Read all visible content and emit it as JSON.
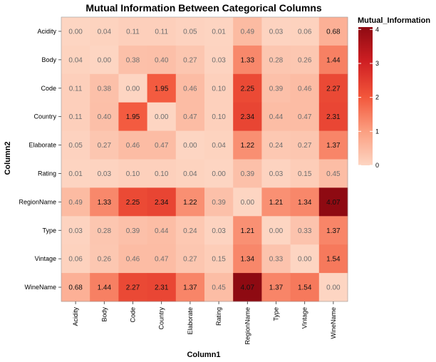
{
  "chart_data": {
    "type": "heatmap",
    "title": "Mutual Information Between Categorical Columns",
    "xlabel": "Column1",
    "ylabel": "Column2",
    "x_categories": [
      "Acidity",
      "Body",
      "Code",
      "Country",
      "Elaborate",
      "Rating",
      "RegionName",
      "Type",
      "Vintage",
      "WineName"
    ],
    "y_categories": [
      "Acidity",
      "Body",
      "Code",
      "Country",
      "Elaborate",
      "Rating",
      "RegionName",
      "Type",
      "Vintage",
      "WineName"
    ],
    "values": [
      [
        0.0,
        0.04,
        0.11,
        0.11,
        0.05,
        0.01,
        0.49,
        0.03,
        0.06,
        0.68
      ],
      [
        0.04,
        0.0,
        0.38,
        0.4,
        0.27,
        0.03,
        1.33,
        0.28,
        0.26,
        1.44
      ],
      [
        0.11,
        0.38,
        0.0,
        1.95,
        0.46,
        0.1,
        2.25,
        0.39,
        0.46,
        2.27
      ],
      [
        0.11,
        0.4,
        1.95,
        0.0,
        0.47,
        0.1,
        2.34,
        0.44,
        0.47,
        2.31
      ],
      [
        0.05,
        0.27,
        0.46,
        0.47,
        0.0,
        0.04,
        1.22,
        0.24,
        0.27,
        1.37
      ],
      [
        0.01,
        0.03,
        0.1,
        0.1,
        0.04,
        0.0,
        0.39,
        0.03,
        0.15,
        0.45
      ],
      [
        0.49,
        1.33,
        2.25,
        2.34,
        1.22,
        0.39,
        0.0,
        1.21,
        1.34,
        4.07
      ],
      [
        0.03,
        0.28,
        0.39,
        0.44,
        0.24,
        0.03,
        1.21,
        0.0,
        0.33,
        1.37
      ],
      [
        0.06,
        0.26,
        0.46,
        0.47,
        0.27,
        0.15,
        1.34,
        0.33,
        0.0,
        1.54
      ],
      [
        0.68,
        1.44,
        2.27,
        2.31,
        1.37,
        0.45,
        4.07,
        1.37,
        1.54,
        0.0
      ]
    ],
    "colorbar": {
      "title": "Mutual_Information",
      "range": [
        0,
        4.07
      ],
      "ticks": [
        0,
        1,
        2,
        3,
        4
      ],
      "colors": [
        "#fdd5c2",
        "#fb9e80",
        "#f2553a",
        "#cf1f23",
        "#8e0a12"
      ]
    }
  }
}
